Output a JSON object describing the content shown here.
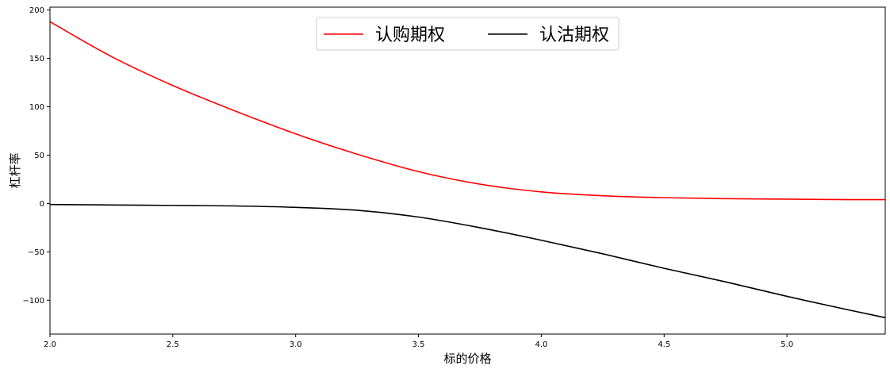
{
  "chart_data": {
    "type": "line",
    "xlabel": "标的价格",
    "ylabel": "杠杆率",
    "xlim": [
      2.0,
      5.4
    ],
    "ylim": [
      -135,
      203
    ],
    "x_ticks": [
      2.0,
      2.5,
      3.0,
      3.5,
      4.0,
      4.5,
      5.0
    ],
    "x_tick_labels": [
      "2.0",
      "2.5",
      "3.0",
      "3.5",
      "4.0",
      "4.5",
      "5.0"
    ],
    "y_ticks": [
      -100,
      -50,
      0,
      50,
      100,
      150,
      200
    ],
    "y_tick_labels": [
      "−100",
      "−50",
      "0",
      "50",
      "100",
      "150",
      "200"
    ],
    "legend_position": "top-center",
    "x": [
      2.0,
      2.25,
      2.5,
      2.75,
      3.0,
      3.25,
      3.5,
      3.75,
      4.0,
      4.25,
      4.5,
      4.75,
      5.0,
      5.25,
      5.4
    ],
    "series": [
      {
        "name": "认购期权",
        "color": "#ff0000",
        "values": [
          188,
          152,
          122,
          96,
          72,
          51,
          33,
          20,
          12,
          8,
          6,
          5,
          4.5,
          4,
          4
        ]
      },
      {
        "name": "认沽期权",
        "color": "#000000",
        "values": [
          -1,
          -1.5,
          -2,
          -2.5,
          -4,
          -7,
          -14,
          -25,
          -38,
          -52,
          -67,
          -81,
          -96,
          -110,
          -118
        ]
      }
    ]
  }
}
